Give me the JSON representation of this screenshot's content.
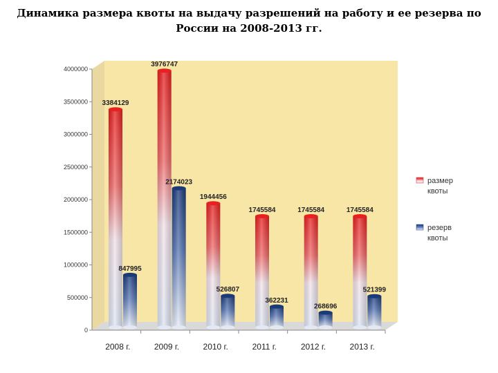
{
  "title": {
    "line1": "Динамика размера квоты на выдачу разрешений на работу и ее резерва  по",
    "line2": "России на 2008-2013 гг."
  },
  "colors": {
    "quota_top": "#e82020",
    "quota_bottom": "#ffffff",
    "reserve_top": "#1a3a7a",
    "reserve_bottom": "#ffffff",
    "plot_back": "#f8e6a6"
  },
  "chart_data": {
    "type": "bar",
    "categories": [
      "2008 г.",
      "2009 г.",
      "2010 г.",
      "2011 г.",
      "2012 г.",
      "2013 г."
    ],
    "series": [
      {
        "name": "размер квоты",
        "values": [
          3384129,
          3976747,
          1944456,
          1745584,
          1745584,
          1745584
        ]
      },
      {
        "name": "резерв квоты",
        "values": [
          847995,
          2174023,
          526807,
          362231,
          268696,
          521399
        ]
      }
    ],
    "ylim": [
      0,
      4000000
    ],
    "yticks": [
      0,
      500000,
      1000000,
      1500000,
      2000000,
      2500000,
      3000000,
      3500000,
      4000000
    ],
    "legend": [
      {
        "line1": "размер",
        "line2": "квоты"
      },
      {
        "line1": "резерв",
        "line2": "квоты"
      }
    ],
    "legend_position": "right",
    "grid": false
  }
}
